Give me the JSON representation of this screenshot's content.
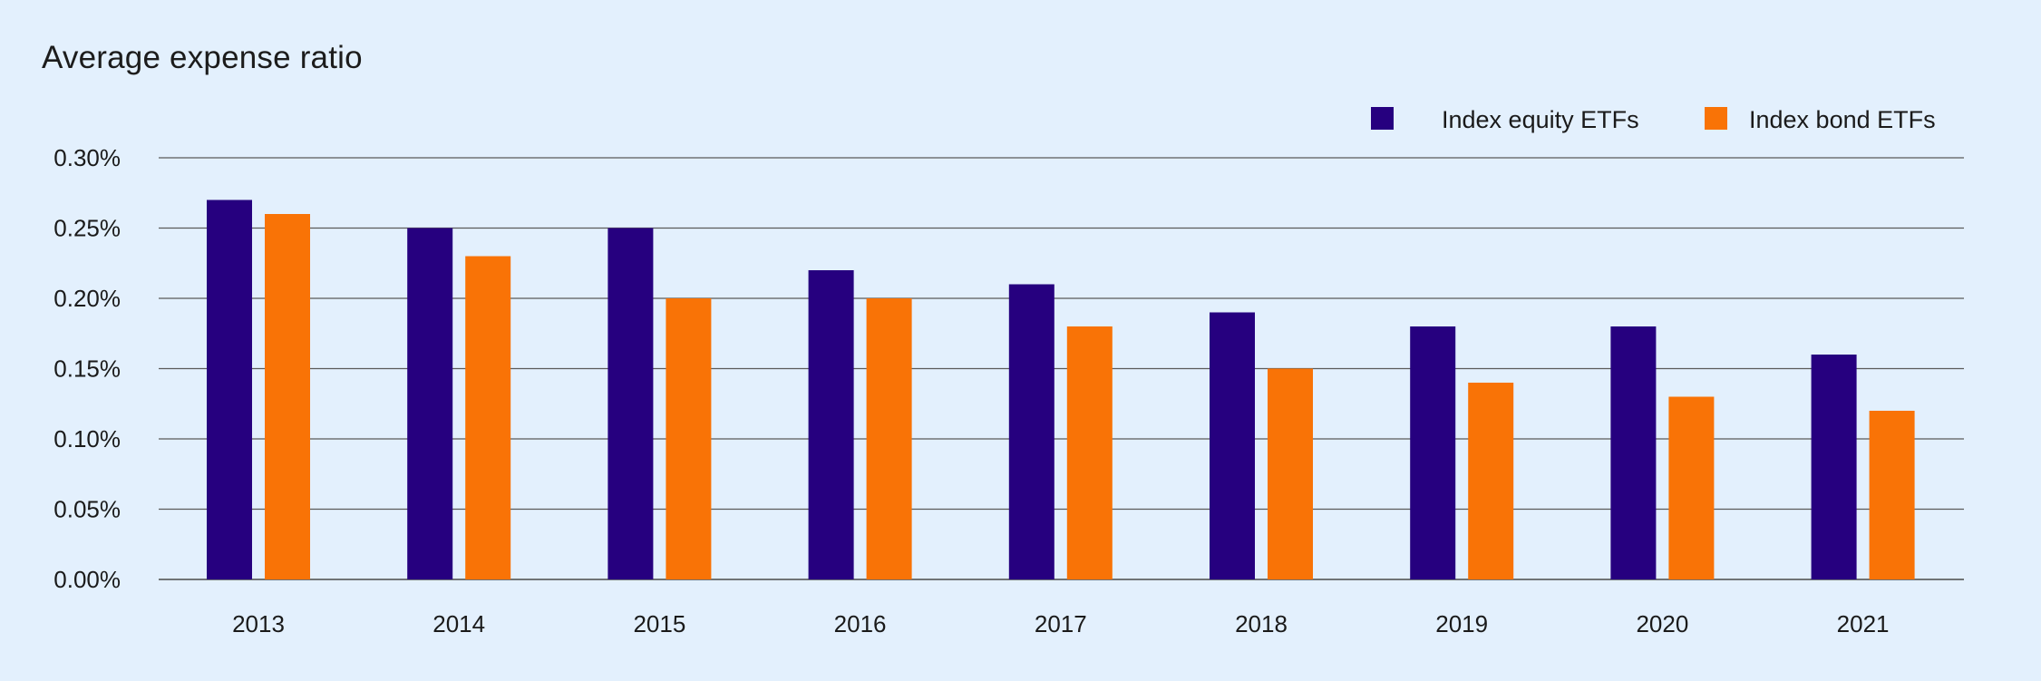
{
  "chart_data": {
    "type": "bar",
    "title": "Average expense ratio",
    "xlabel": "",
    "ylabel": "",
    "categories": [
      "2013",
      "2014",
      "2015",
      "2016",
      "2017",
      "2018",
      "2019",
      "2020",
      "2021"
    ],
    "series": [
      {
        "name": "Index equity ETFs",
        "color": "#26007f",
        "values": [
          0.27,
          0.25,
          0.25,
          0.22,
          0.21,
          0.19,
          0.18,
          0.18,
          0.16
        ]
      },
      {
        "name": "Index bond ETFs",
        "color": "#f97306",
        "values": [
          0.26,
          0.23,
          0.2,
          0.2,
          0.18,
          0.15,
          0.14,
          0.13,
          0.12
        ]
      }
    ],
    "ylim": [
      0,
      0.3
    ],
    "yticks": [
      "0.00%",
      "0.05%",
      "0.10%",
      "0.15%",
      "0.20%",
      "0.25%",
      "0.30%"
    ],
    "ytick_values": [
      0,
      0.05,
      0.1,
      0.15,
      0.2,
      0.25,
      0.3
    ],
    "grid": true,
    "legend_position": "top-right",
    "background": "#e3f0fd"
  }
}
